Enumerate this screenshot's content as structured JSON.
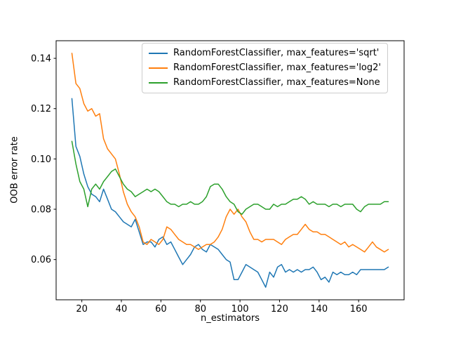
{
  "figure": {
    "background": "#ffffff"
  },
  "chart_data": {
    "type": "line",
    "title": "",
    "xlabel": "n_estimators",
    "ylabel": "OOB error rate",
    "grid": false,
    "legend_position": "upper center inside axes",
    "xlim": [
      7,
      183
    ],
    "ylim": [
      0.044,
      0.147
    ],
    "xticks": [
      20,
      40,
      60,
      80,
      100,
      120,
      140,
      160
    ],
    "yticks": [
      0.06,
      0.08,
      0.1,
      0.12,
      0.14
    ],
    "x": [
      15,
      17,
      19,
      21,
      23,
      25,
      27,
      29,
      31,
      33,
      35,
      37,
      39,
      41,
      43,
      45,
      47,
      49,
      51,
      53,
      55,
      57,
      59,
      61,
      63,
      65,
      67,
      69,
      71,
      73,
      75,
      77,
      79,
      81,
      83,
      85,
      87,
      89,
      91,
      93,
      95,
      97,
      99,
      101,
      103,
      105,
      107,
      109,
      111,
      113,
      115,
      117,
      119,
      121,
      123,
      125,
      127,
      129,
      131,
      133,
      135,
      137,
      139,
      141,
      143,
      145,
      147,
      149,
      151,
      153,
      155,
      157,
      159,
      161,
      163,
      165,
      167,
      169,
      171,
      173,
      175
    ],
    "series": [
      {
        "name": "RandomForestClassifier, max_features='sqrt'",
        "color": "#1f77b4",
        "values": [
          0.124,
          0.105,
          0.101,
          0.094,
          0.089,
          0.086,
          0.085,
          0.083,
          0.088,
          0.084,
          0.08,
          0.079,
          0.077,
          0.075,
          0.074,
          0.073,
          0.076,
          0.071,
          0.066,
          0.067,
          0.067,
          0.065,
          0.068,
          0.069,
          0.066,
          0.067,
          0.064,
          0.061,
          0.058,
          0.06,
          0.062,
          0.065,
          0.066,
          0.064,
          0.063,
          0.066,
          0.065,
          0.064,
          0.062,
          0.06,
          0.059,
          0.052,
          0.052,
          0.055,
          0.058,
          0.057,
          0.056,
          0.055,
          0.052,
          0.049,
          0.055,
          0.053,
          0.057,
          0.058,
          0.055,
          0.056,
          0.055,
          0.056,
          0.055,
          0.056,
          0.056,
          0.057,
          0.055,
          0.052,
          0.053,
          0.051,
          0.055,
          0.054,
          0.055,
          0.054,
          0.054,
          0.055,
          0.054,
          0.056,
          0.056,
          0.056,
          0.056,
          0.056,
          0.056,
          0.056,
          0.057
        ]
      },
      {
        "name": "RandomForestClassifier, max_features='log2'",
        "color": "#ff7f0e",
        "values": [
          0.142,
          0.13,
          0.128,
          0.122,
          0.119,
          0.12,
          0.117,
          0.118,
          0.108,
          0.104,
          0.102,
          0.1,
          0.094,
          0.087,
          0.082,
          0.079,
          0.077,
          0.073,
          0.067,
          0.066,
          0.068,
          0.067,
          0.066,
          0.068,
          0.073,
          0.072,
          0.07,
          0.068,
          0.067,
          0.066,
          0.066,
          0.065,
          0.064,
          0.065,
          0.066,
          0.066,
          0.067,
          0.069,
          0.072,
          0.077,
          0.08,
          0.078,
          0.08,
          0.077,
          0.075,
          0.071,
          0.068,
          0.068,
          0.067,
          0.068,
          0.068,
          0.068,
          0.067,
          0.066,
          0.068,
          0.069,
          0.07,
          0.07,
          0.072,
          0.074,
          0.072,
          0.071,
          0.071,
          0.07,
          0.07,
          0.069,
          0.068,
          0.067,
          0.066,
          0.067,
          0.065,
          0.066,
          0.065,
          0.064,
          0.063,
          0.065,
          0.067,
          0.065,
          0.064,
          0.063,
          0.064
        ]
      },
      {
        "name": "RandomForestClassifier, max_features=None",
        "color": "#2ca02c",
        "values": [
          0.107,
          0.098,
          0.091,
          0.088,
          0.081,
          0.088,
          0.09,
          0.088,
          0.091,
          0.093,
          0.095,
          0.096,
          0.093,
          0.09,
          0.088,
          0.087,
          0.085,
          0.086,
          0.087,
          0.088,
          0.087,
          0.088,
          0.087,
          0.085,
          0.083,
          0.082,
          0.082,
          0.081,
          0.082,
          0.082,
          0.083,
          0.082,
          0.082,
          0.083,
          0.085,
          0.089,
          0.09,
          0.09,
          0.088,
          0.085,
          0.083,
          0.082,
          0.079,
          0.078,
          0.08,
          0.081,
          0.082,
          0.082,
          0.081,
          0.08,
          0.08,
          0.082,
          0.081,
          0.082,
          0.082,
          0.083,
          0.084,
          0.084,
          0.085,
          0.084,
          0.082,
          0.083,
          0.082,
          0.082,
          0.082,
          0.081,
          0.082,
          0.082,
          0.081,
          0.082,
          0.082,
          0.082,
          0.08,
          0.079,
          0.081,
          0.082,
          0.082,
          0.082,
          0.082,
          0.083,
          0.083
        ]
      }
    ]
  }
}
